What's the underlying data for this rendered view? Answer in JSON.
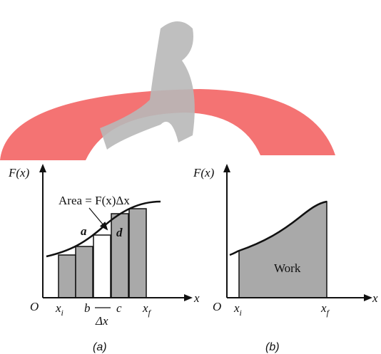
{
  "panel_a": {
    "y_axis_label": "F(x)",
    "x_axis_label": "x",
    "origin": "O",
    "area_label": "Area = F(x)Δx",
    "point_a": "a",
    "point_d": "d",
    "xi": {
      "main": "x",
      "sub": "i"
    },
    "b": "b",
    "c": "c",
    "delta_x": "Δx",
    "xf": {
      "main": "x",
      "sub": "f"
    },
    "caption": "(a)"
  },
  "panel_b": {
    "y_axis_label": "F(x)",
    "x_axis_label": "x",
    "origin": "O",
    "xi": {
      "main": "x",
      "sub": "i"
    },
    "xf": {
      "main": "x",
      "sub": "f"
    },
    "work": "Work",
    "caption": "(b)"
  }
}
